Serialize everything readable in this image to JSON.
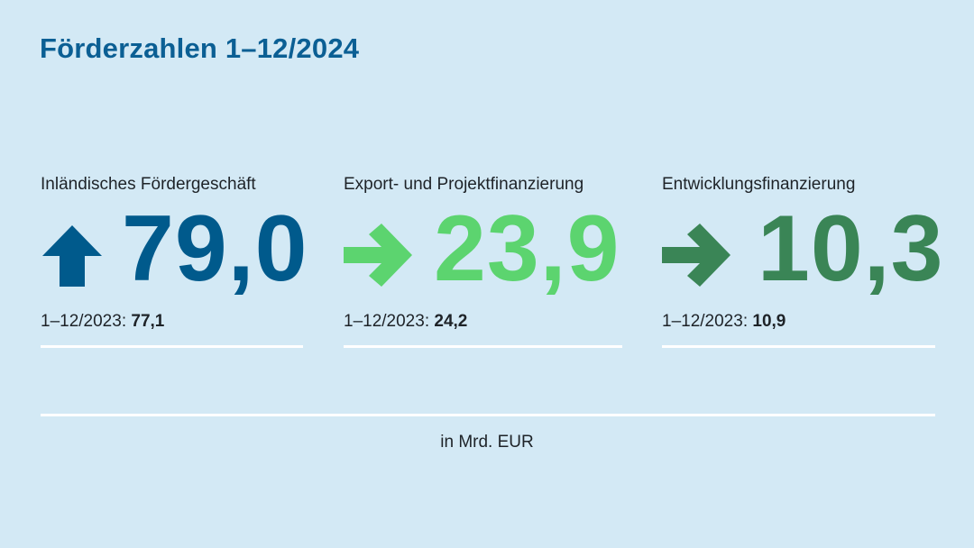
{
  "title": "Förderzahlen 1–12/2024",
  "kpis": [
    {
      "label": "Inländisches Fördergeschäft",
      "value": "79,0",
      "trend": "up",
      "arrow_icon": "arrow-up-icon",
      "color": "#005a8c",
      "previous_label": "1–12/2023: ",
      "previous_value": "77,1"
    },
    {
      "label": "Export- und Projektfinanzierung",
      "value": "23,9",
      "trend": "flat",
      "arrow_icon": "arrow-right-icon",
      "color": "#5cd46f",
      "previous_label": "1–12/2023: ",
      "previous_value": "24,2"
    },
    {
      "label": "Entwicklungsfinanzierung",
      "value": "10,3",
      "trend": "flat",
      "arrow_icon": "arrow-right-icon",
      "color": "#3a8556",
      "previous_label": "1–12/2023: ",
      "previous_value": "10,9"
    }
  ],
  "unit": "in Mrd. EUR",
  "colors": {
    "background": "#d3e9f5",
    "title": "#0b5f94",
    "text": "#1e2328",
    "rule": "#ffffff"
  }
}
